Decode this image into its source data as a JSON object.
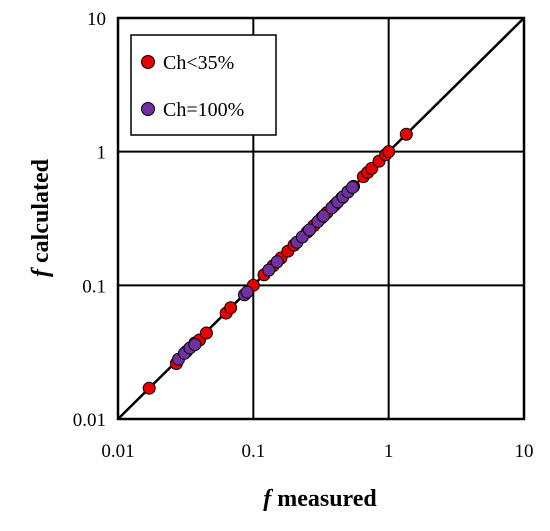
{
  "chart_data": {
    "type": "scatter",
    "x_scale": "log",
    "y_scale": "log",
    "xlim": [
      0.01,
      10
    ],
    "ylim": [
      0.01,
      10
    ],
    "grid": true,
    "legend_position": "top-left",
    "x_ticks": [
      "0.01",
      "0.1",
      "1",
      "10"
    ],
    "y_ticks": [
      "0.01",
      "0.1",
      "1",
      "10"
    ],
    "xlabel": {
      "italic": "f",
      "text": " measured"
    },
    "ylabel": {
      "italic": "f",
      "text": " calculated"
    },
    "reference_line": "y = x",
    "series": [
      {
        "name": "Ch<35%",
        "color": "#e60000",
        "points": [
          [
            0.017,
            0.017
          ],
          [
            0.027,
            0.026
          ],
          [
            0.032,
            0.032
          ],
          [
            0.037,
            0.037
          ],
          [
            0.04,
            0.039
          ],
          [
            0.045,
            0.044
          ],
          [
            0.063,
            0.062
          ],
          [
            0.068,
            0.068
          ],
          [
            0.1,
            0.1
          ],
          [
            0.12,
            0.12
          ],
          [
            0.14,
            0.14
          ],
          [
            0.16,
            0.16
          ],
          [
            0.18,
            0.18
          ],
          [
            0.2,
            0.2
          ],
          [
            0.25,
            0.25
          ],
          [
            0.28,
            0.28
          ],
          [
            0.32,
            0.32
          ],
          [
            0.35,
            0.35
          ],
          [
            0.4,
            0.4
          ],
          [
            0.45,
            0.45
          ],
          [
            0.5,
            0.5
          ],
          [
            0.55,
            0.55
          ],
          [
            0.65,
            0.65
          ],
          [
            0.7,
            0.7
          ],
          [
            0.75,
            0.75
          ],
          [
            0.85,
            0.85
          ],
          [
            0.95,
            0.95
          ],
          [
            1.0,
            1.0
          ],
          [
            1.35,
            1.35
          ]
        ]
      },
      {
        "name": "Ch=100%",
        "color": "#7030a0",
        "points": [
          [
            0.028,
            0.028
          ],
          [
            0.031,
            0.031
          ],
          [
            0.034,
            0.034
          ],
          [
            0.037,
            0.036
          ],
          [
            0.086,
            0.085
          ],
          [
            0.09,
            0.089
          ],
          [
            0.13,
            0.13
          ],
          [
            0.15,
            0.15
          ],
          [
            0.21,
            0.21
          ],
          [
            0.23,
            0.23
          ],
          [
            0.26,
            0.26
          ],
          [
            0.3,
            0.3
          ],
          [
            0.33,
            0.33
          ],
          [
            0.38,
            0.38
          ],
          [
            0.42,
            0.42
          ],
          [
            0.46,
            0.46
          ],
          [
            0.5,
            0.5
          ],
          [
            0.54,
            0.54
          ]
        ]
      }
    ]
  }
}
